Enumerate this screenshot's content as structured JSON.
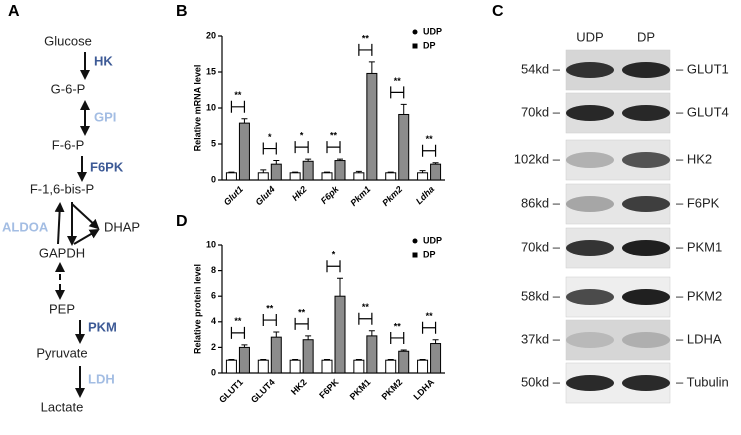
{
  "panels": [
    "A",
    "B",
    "C",
    "D"
  ],
  "pathway": {
    "metabolites": [
      "Glucose",
      "G-6-P",
      "F-6-P",
      "F-1,6-bis-P",
      "DHAP",
      "GAPDH",
      "PEP",
      "Pyruvate",
      "Lactate"
    ],
    "enzymes": [
      {
        "label": "HK",
        "color": "#3d5a96"
      },
      {
        "label": "GPI",
        "color": "#a3bde3"
      },
      {
        "label": "F6PK",
        "color": "#3d5a96"
      },
      {
        "label": "ALDOA",
        "color": "#a3bde3"
      },
      {
        "label": "PKM",
        "color": "#3d5a96"
      },
      {
        "label": "LDH",
        "color": "#a3bde3"
      }
    ]
  },
  "blot": {
    "lanes": [
      "UDP",
      "DP"
    ],
    "rows": [
      {
        "size": "54kd –",
        "protein": "– GLUT1"
      },
      {
        "size": "70kd –",
        "protein": "– GLUT4"
      },
      {
        "size": "102kd –",
        "protein": "– HK2"
      },
      {
        "size": "86kd –",
        "protein": "– F6PK"
      },
      {
        "size": "70kd –",
        "protein": "– PKM1"
      },
      {
        "size": "58kd –",
        "protein": "– PKM2"
      },
      {
        "size": "37kd –",
        "protein": "– LDHA"
      },
      {
        "size": "50kd –",
        "protein": "– Tubulin"
      }
    ]
  },
  "chart_data": [
    {
      "type": "bar",
      "y_label": "Relative mRNA level",
      "italic_labels": true,
      "categories": [
        "Glut1",
        "Glut4",
        "Hk2",
        "F6pk",
        "Pkm1",
        "Pkm2",
        "Ldha"
      ],
      "series": [
        {
          "name": "UDP",
          "color": "#ffffff",
          "marker": "circle",
          "values": [
            1,
            1,
            1,
            1,
            1,
            1,
            1
          ],
          "errors": [
            0.1,
            0.4,
            0.1,
            0.1,
            0.2,
            0.1,
            0.3
          ]
        },
        {
          "name": "DP",
          "color": "#8c8c8c",
          "marker": "square",
          "values": [
            7.9,
            2.2,
            2.6,
            2.7,
            14.8,
            9.1,
            2.2
          ],
          "errors": [
            0.6,
            0.5,
            0.3,
            0.2,
            1.6,
            1.4,
            0.2
          ]
        }
      ],
      "significance": [
        "**",
        "*",
        "*",
        "**",
        "**",
        "**",
        "**"
      ],
      "ylim": [
        0,
        20
      ],
      "yticks": [
        0,
        5,
        10,
        15,
        20
      ]
    },
    {
      "type": "bar",
      "y_label": "Relative protein level",
      "italic_labels": false,
      "categories": [
        "GLUT1",
        "GLUT4",
        "HK2",
        "F6PK",
        "PKM1",
        "PKM2",
        "LDHA"
      ],
      "series": [
        {
          "name": "UDP",
          "color": "#ffffff",
          "marker": "circle",
          "values": [
            1,
            1,
            1,
            1,
            1,
            1,
            1
          ],
          "errors": [
            0.05,
            0.05,
            0.05,
            0.05,
            0.05,
            0.05,
            0.05
          ]
        },
        {
          "name": "DP",
          "color": "#8c8c8c",
          "marker": "square",
          "values": [
            2.0,
            2.8,
            2.6,
            6.0,
            2.9,
            1.7,
            2.3
          ],
          "errors": [
            0.2,
            0.4,
            0.3,
            1.4,
            0.4,
            0.1,
            0.3
          ]
        }
      ],
      "significance": [
        "**",
        "**",
        "**",
        "*",
        "**",
        "**",
        "**"
      ],
      "ylim": [
        0,
        10
      ],
      "yticks": [
        0,
        2,
        4,
        6,
        8,
        10
      ]
    }
  ]
}
